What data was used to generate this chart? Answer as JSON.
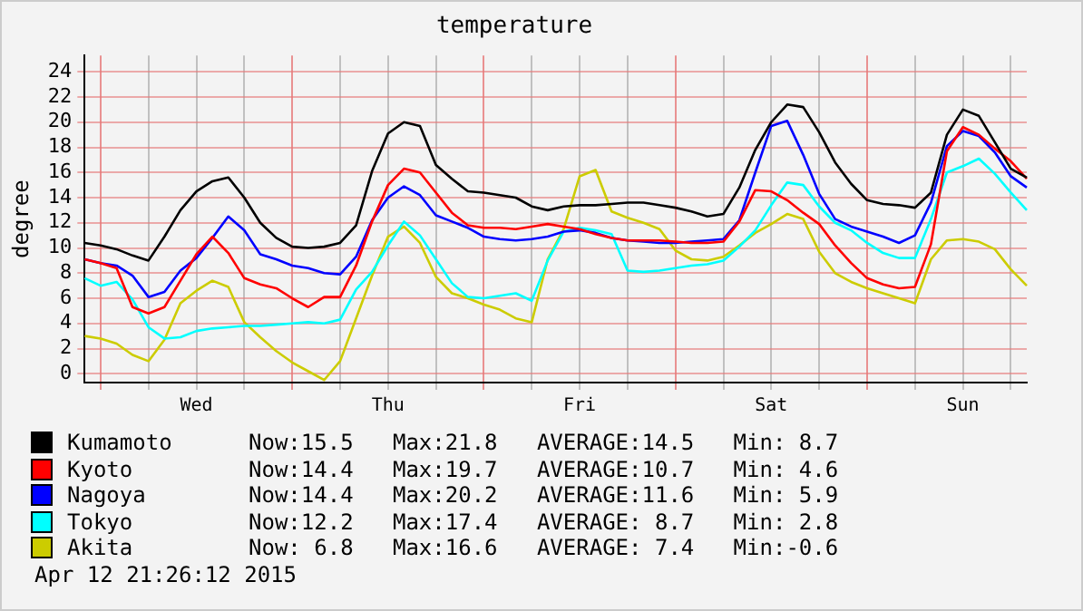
{
  "chart_data": {
    "type": "line",
    "title": "temperature",
    "ylabel": "degree",
    "categories": [
      null,
      null,
      null,
      null,
      null,
      null,
      null,
      "Wed",
      null,
      null,
      null,
      null,
      null,
      null,
      null,
      null,
      null,
      null,
      null,
      "Thu",
      null,
      null,
      null,
      null,
      null,
      null,
      null,
      null,
      null,
      null,
      null,
      "Fri",
      null,
      null,
      null,
      null,
      null,
      null,
      null,
      null,
      null,
      null,
      null,
      "Sat",
      null,
      null,
      null,
      null,
      null,
      null,
      null,
      null,
      null,
      null,
      null,
      "Sun",
      null,
      null,
      null,
      null
    ],
    "ylim": [
      -0.7,
      25.3
    ],
    "yticks": [
      0,
      2,
      4,
      6,
      8,
      10,
      12,
      14,
      16,
      18,
      20,
      22,
      24
    ],
    "grid": true,
    "legend": "bottom",
    "marker": "none",
    "line_style": "solid",
    "annotations": [
      "Now:15.5   Max:21.8   AVERAGE:14.5   Min: 8.7",
      "Now:14.4   Max:19.7   AVERAGE:10.7   Min: 4.6",
      "Now:14.4   Max:20.2   AVERAGE:11.6   Min: 5.9",
      "Now:12.2   Max:17.4   AVERAGE: 8.7   Min: 2.8",
      "Now: 6.8   Max:16.6   AVERAGE: 7.4   Min:-0.6",
      "Apr 12 21:26:12 2015"
    ],
    "series": [
      {
        "name": "Kumamoto",
        "color": "#000000",
        "values": [
          10.4,
          10.2,
          9.9,
          9.4,
          9.0,
          10.9,
          13.0,
          14.5,
          15.3,
          15.6,
          14.0,
          12.0,
          10.8,
          10.1,
          10.0,
          10.1,
          10.4,
          11.8,
          16.1,
          19.1,
          20.0,
          19.7,
          16.6,
          15.5,
          14.5,
          14.4,
          14.2,
          14.0,
          13.3,
          13.0,
          13.3,
          13.4,
          13.4,
          13.5,
          13.6,
          13.6,
          13.4,
          13.2,
          12.9,
          12.5,
          12.7,
          14.8,
          17.8,
          20.0,
          21.4,
          21.2,
          19.2,
          16.8,
          15.1,
          13.8,
          13.5,
          13.4,
          13.2,
          14.4,
          19.0,
          21.0,
          20.5,
          18.4,
          16.3,
          15.6
        ]
      },
      {
        "name": "Kyoto",
        "color": "#ff0000",
        "values": [
          9.1,
          8.8,
          8.4,
          5.3,
          4.8,
          5.3,
          7.4,
          9.5,
          10.9,
          9.6,
          7.6,
          7.1,
          6.8,
          6.0,
          5.3,
          6.1,
          6.1,
          8.6,
          12.1,
          15.0,
          16.3,
          16.0,
          14.4,
          12.8,
          11.8,
          11.6,
          11.6,
          11.5,
          11.7,
          11.9,
          11.7,
          11.5,
          11.1,
          10.8,
          10.6,
          10.6,
          10.6,
          10.5,
          10.4,
          10.4,
          10.5,
          12.1,
          14.6,
          14.5,
          13.8,
          12.8,
          11.9,
          10.2,
          8.8,
          7.6,
          7.1,
          6.8,
          6.9,
          10.3,
          17.7,
          19.6,
          19.0,
          17.9,
          16.9,
          15.5
        ]
      },
      {
        "name": "Nagoya",
        "color": "#0000ff",
        "values": [
          9.1,
          8.8,
          8.6,
          7.8,
          6.1,
          6.5,
          8.2,
          9.2,
          10.8,
          12.5,
          11.4,
          9.5,
          9.1,
          8.6,
          8.4,
          8.0,
          7.9,
          9.3,
          12.2,
          14.0,
          14.9,
          14.2,
          12.6,
          12.1,
          11.6,
          10.9,
          10.7,
          10.6,
          10.7,
          10.9,
          11.3,
          11.4,
          11.2,
          10.8,
          10.6,
          10.5,
          10.4,
          10.4,
          10.5,
          10.6,
          10.7,
          12.2,
          16.0,
          19.7,
          20.1,
          17.4,
          14.3,
          12.3,
          11.7,
          11.3,
          10.9,
          10.4,
          11.0,
          13.6,
          18.1,
          19.3,
          18.9,
          17.6,
          15.7,
          14.8
        ]
      },
      {
        "name": "Tokyo",
        "color": "#00ffff",
        "values": [
          7.6,
          7.0,
          7.3,
          5.9,
          3.7,
          2.8,
          2.9,
          3.4,
          3.6,
          3.7,
          3.8,
          3.8,
          3.9,
          4.0,
          4.1,
          4.0,
          4.3,
          6.7,
          8.1,
          10.2,
          12.1,
          11.0,
          9.1,
          7.2,
          6.1,
          6.0,
          6.2,
          6.4,
          5.8,
          9.0,
          11.3,
          11.6,
          11.4,
          11.1,
          8.2,
          8.1,
          8.2,
          8.4,
          8.6,
          8.7,
          9.0,
          10.1,
          11.4,
          13.4,
          15.2,
          15.0,
          13.3,
          12.0,
          11.4,
          10.4,
          9.6,
          9.2,
          9.2,
          12.3,
          16.0,
          16.5,
          17.1,
          15.9,
          14.4,
          13.0
        ]
      },
      {
        "name": "Akita",
        "color": "#cccc00",
        "values": [
          3.0,
          2.8,
          2.4,
          1.5,
          1.0,
          2.7,
          5.6,
          6.6,
          7.4,
          6.9,
          4.1,
          2.9,
          1.8,
          0.9,
          0.2,
          -0.5,
          1.0,
          4.4,
          7.8,
          10.9,
          11.7,
          10.4,
          7.7,
          6.4,
          6.0,
          5.5,
          5.1,
          4.4,
          4.1,
          9.1,
          11.5,
          15.7,
          16.2,
          12.9,
          12.4,
          12.0,
          11.5,
          9.8,
          9.1,
          9.0,
          9.3,
          10.2,
          11.2,
          11.9,
          12.7,
          12.3,
          9.7,
          8.0,
          7.3,
          6.8,
          6.4,
          6.0,
          5.6,
          9.1,
          10.6,
          10.7,
          10.5,
          9.9,
          8.3,
          7.0
        ]
      }
    ]
  }
}
